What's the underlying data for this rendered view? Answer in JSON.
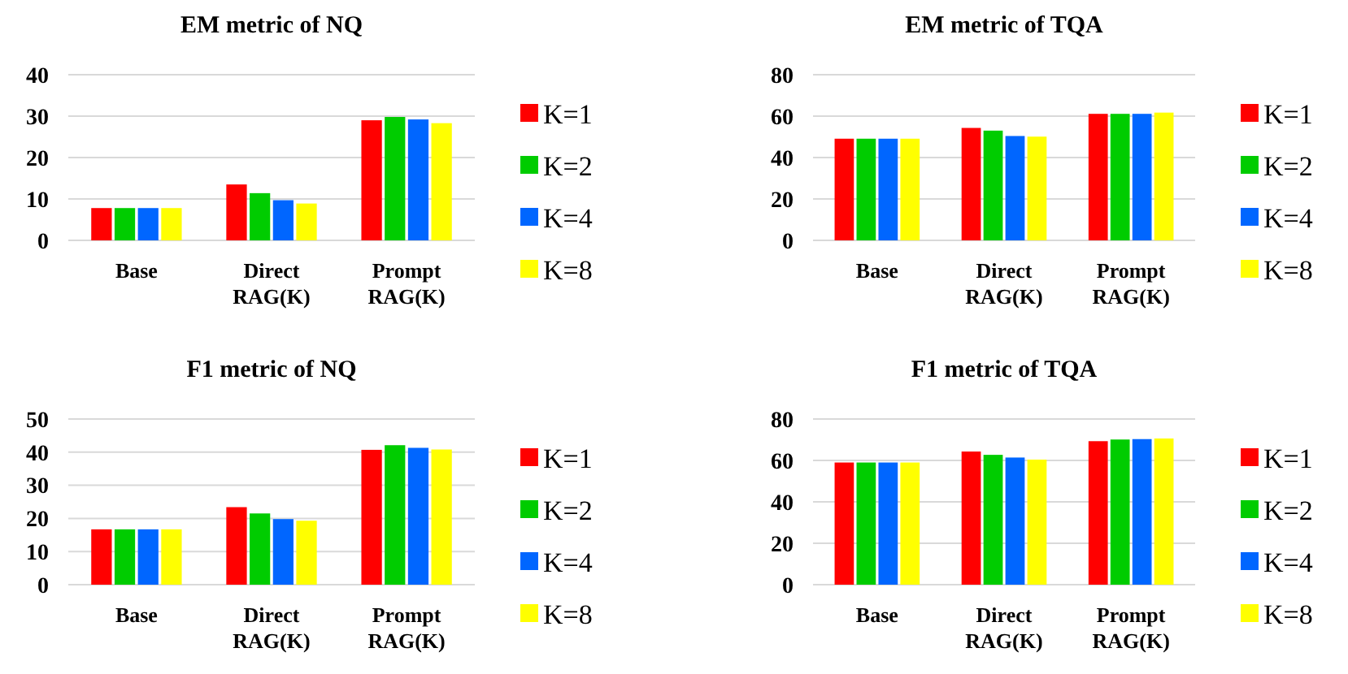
{
  "chart_data": [
    {
      "type": "bar",
      "title": "EM metric of NQ",
      "categories": [
        "Base",
        "Direct RAG(K)",
        "Prompt RAG(K)"
      ],
      "ylim": [
        0,
        40
      ],
      "yticks": [
        0,
        10,
        20,
        30,
        40
      ],
      "grid": "y",
      "legend": "right",
      "series": [
        {
          "name": "K=1",
          "color": "#ff0000",
          "values": [
            7.8,
            13.5,
            29.0
          ]
        },
        {
          "name": "K=2",
          "color": "#00cc00",
          "values": [
            7.8,
            11.4,
            29.8
          ]
        },
        {
          "name": "K=4",
          "color": "#0066ff",
          "values": [
            7.8,
            9.7,
            29.2
          ]
        },
        {
          "name": "K=8",
          "color": "#ffff00",
          "values": [
            7.8,
            8.9,
            28.3
          ]
        }
      ]
    },
    {
      "type": "bar",
      "title": "EM metric of TQA",
      "categories": [
        "Base",
        "Direct RAG(K)",
        "Prompt RAG(K)"
      ],
      "ylim": [
        0,
        80
      ],
      "yticks": [
        0,
        20,
        40,
        60,
        80
      ],
      "grid": "y",
      "legend": "right",
      "series": [
        {
          "name": "K=1",
          "color": "#ff0000",
          "values": [
            49.1,
            54.3,
            61.1
          ]
        },
        {
          "name": "K=2",
          "color": "#00cc00",
          "values": [
            49.1,
            53.0,
            61.1
          ]
        },
        {
          "name": "K=4",
          "color": "#0066ff",
          "values": [
            49.1,
            50.4,
            61.1
          ]
        },
        {
          "name": "K=8",
          "color": "#ffff00",
          "values": [
            49.1,
            50.1,
            61.7
          ]
        }
      ]
    },
    {
      "type": "bar",
      "title": "F1 metric of NQ",
      "categories": [
        "Base",
        "Direct RAG(K)",
        "Prompt RAG(K)"
      ],
      "ylim": [
        0,
        50
      ],
      "yticks": [
        0,
        10,
        20,
        30,
        40,
        50
      ],
      "grid": "y",
      "legend": "right",
      "series": [
        {
          "name": "K=1",
          "color": "#ff0000",
          "values": [
            16.7,
            23.4,
            40.7
          ]
        },
        {
          "name": "K=2",
          "color": "#00cc00",
          "values": [
            16.7,
            21.5,
            42.1
          ]
        },
        {
          "name": "K=4",
          "color": "#0066ff",
          "values": [
            16.7,
            19.8,
            41.3
          ]
        },
        {
          "name": "K=8",
          "color": "#ffff00",
          "values": [
            16.7,
            19.3,
            40.8
          ]
        }
      ]
    },
    {
      "type": "bar",
      "title": "F1 metric of TQA",
      "categories": [
        "Base",
        "Direct RAG(K)",
        "Prompt RAG(K)"
      ],
      "ylim": [
        0,
        80
      ],
      "yticks": [
        0,
        20,
        40,
        60,
        80
      ],
      "grid": "y",
      "legend": "right",
      "series": [
        {
          "name": "K=1",
          "color": "#ff0000",
          "values": [
            59.0,
            64.3,
            69.3
          ]
        },
        {
          "name": "K=2",
          "color": "#00cc00",
          "values": [
            59.0,
            62.7,
            70.1
          ]
        },
        {
          "name": "K=4",
          "color": "#0066ff",
          "values": [
            59.0,
            61.4,
            70.3
          ]
        },
        {
          "name": "K=8",
          "color": "#ffff00",
          "values": [
            59.0,
            60.4,
            70.6
          ]
        }
      ]
    }
  ]
}
